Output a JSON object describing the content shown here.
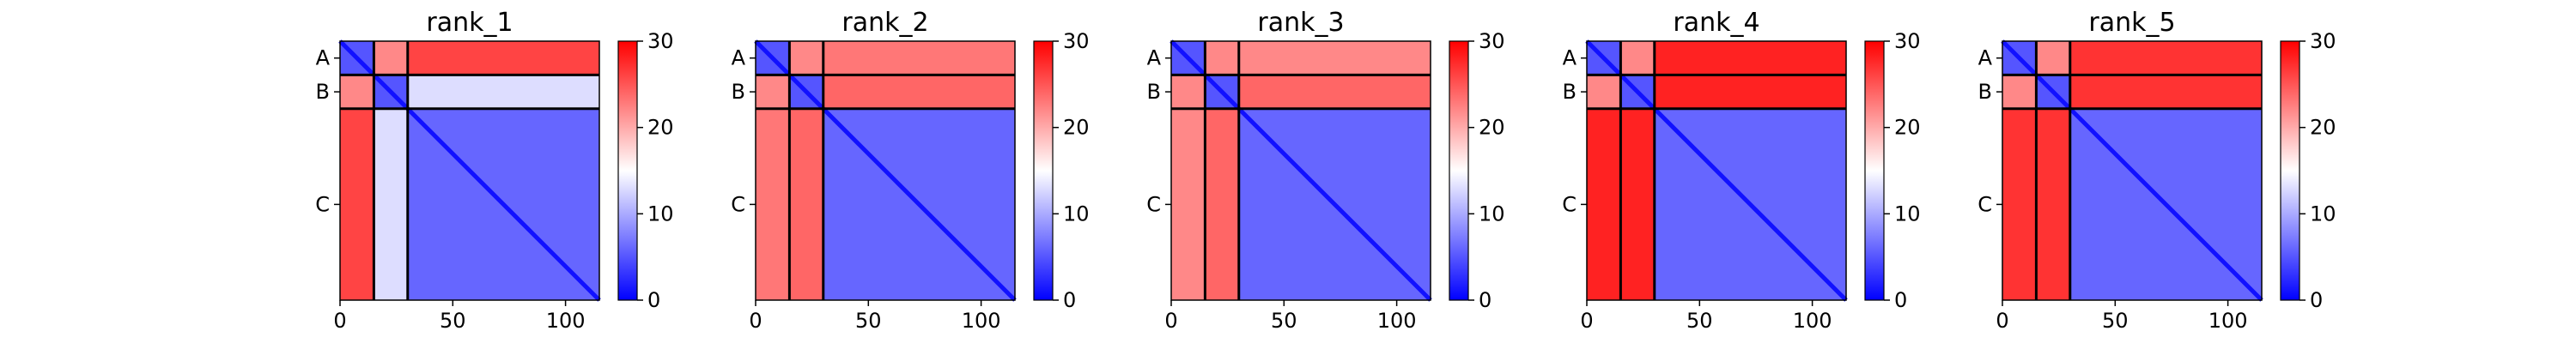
{
  "chart_data": {
    "type": "heatmap",
    "colormap": {
      "name": "bwr",
      "low": "#0000ff",
      "mid": "#ffffff",
      "high": "#ff0000"
    },
    "colorbar": {
      "min": 0,
      "max": 30,
      "ticks": [
        0,
        10,
        20,
        30
      ]
    },
    "x_axis": {
      "range": [
        0,
        115
      ],
      "ticks": [
        0,
        50,
        100
      ]
    },
    "chains": [
      {
        "label": "A",
        "start": 0,
        "end": 15
      },
      {
        "label": "B",
        "start": 15,
        "end": 30
      },
      {
        "label": "C",
        "start": 30,
        "end": 115
      }
    ],
    "panels": [
      {
        "title": "rank_1",
        "pair_levels": {
          "A-A": 5,
          "B-B": 5,
          "C-C": 6,
          "A-B": 22,
          "A-C": 26,
          "B-C": 13
        }
      },
      {
        "title": "rank_2",
        "pair_levels": {
          "A-A": 5,
          "B-B": 5,
          "C-C": 6,
          "A-B": 22,
          "A-C": 23,
          "B-C": 24
        }
      },
      {
        "title": "rank_3",
        "pair_levels": {
          "A-A": 5,
          "B-B": 5,
          "C-C": 6,
          "A-B": 22,
          "A-C": 22,
          "B-C": 24
        }
      },
      {
        "title": "rank_4",
        "pair_levels": {
          "A-A": 5,
          "B-B": 5,
          "C-C": 6,
          "A-B": 22,
          "A-C": 28,
          "B-C": 28
        }
      },
      {
        "title": "rank_5",
        "pair_levels": {
          "A-A": 5,
          "B-B": 5,
          "C-C": 6,
          "A-B": 22,
          "A-C": 27,
          "B-C": 27
        }
      }
    ]
  }
}
